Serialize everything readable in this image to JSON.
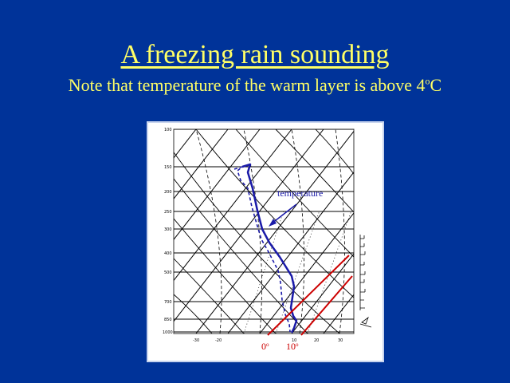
{
  "slide": {
    "title": "A freezing rain sounding",
    "subtitle_main": "Note that temperature of the warm layer is above 4",
    "subtitle_degree": "o",
    "subtitle_unit": "C"
  },
  "diagram": {
    "pressure_labels": [
      "100",
      "150",
      "200",
      "250",
      "300",
      "400",
      "500",
      "700",
      "850",
      "1000"
    ],
    "temp_axis_labels": [
      "-30",
      "-20",
      "10",
      "20",
      "30"
    ],
    "annotation_label": "temperature",
    "zero_label": "0",
    "zero_degree": "o",
    "ten_label": "10",
    "ten_degree": "o"
  },
  "colors": {
    "background": "#003399",
    "title": "#ffff66",
    "sounding": "#1a1aa8",
    "isotherm_highlight": "#cc0000"
  }
}
